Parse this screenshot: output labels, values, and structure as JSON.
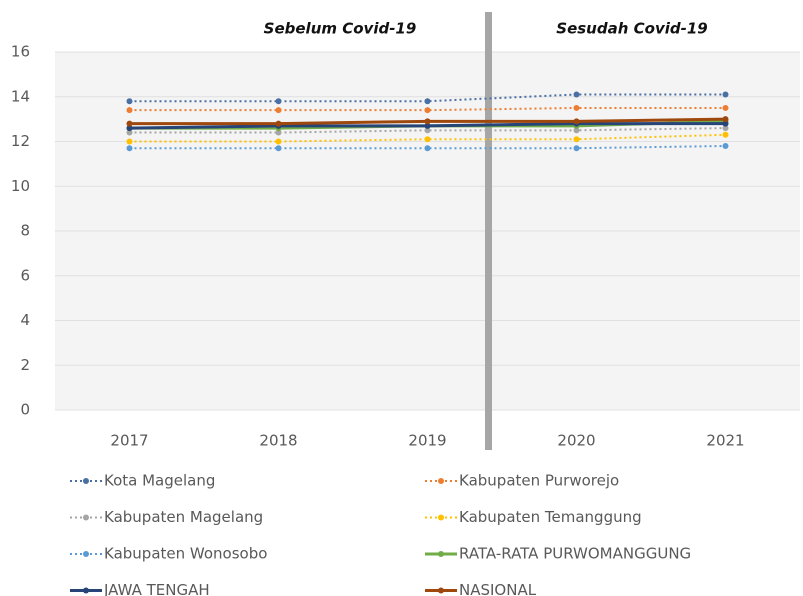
{
  "chart_data": {
    "type": "line",
    "annotations": [
      "Sebelum Covid-19",
      "Sesudah Covid-19"
    ],
    "categories": [
      "2017",
      "2018",
      "2019",
      "2020",
      "2021"
    ],
    "ylim": [
      0,
      16
    ],
    "yticks": [
      0,
      2,
      4,
      6,
      8,
      10,
      12,
      14,
      16
    ],
    "grid": true,
    "series": [
      {
        "name": "Kota Magelang",
        "color": "#4a6fa5",
        "style": "dotted",
        "values": [
          13.8,
          13.8,
          13.8,
          14.1,
          14.1
        ]
      },
      {
        "name": "Kabupaten Purworejo",
        "color": "#ed7d31",
        "style": "dotted",
        "values": [
          13.4,
          13.4,
          13.4,
          13.5,
          13.5
        ]
      },
      {
        "name": "Kabupaten Magelang",
        "color": "#a5a5a5",
        "style": "dotted",
        "values": [
          12.4,
          12.4,
          12.5,
          12.5,
          12.6
        ]
      },
      {
        "name": "Kabupaten Temanggung",
        "color": "#ffc000",
        "style": "dotted",
        "values": [
          12.0,
          12.0,
          12.1,
          12.1,
          12.3
        ]
      },
      {
        "name": "Kabupaten Wonosobo",
        "color": "#5b9bd5",
        "style": "dotted",
        "values": [
          11.7,
          11.7,
          11.7,
          11.7,
          11.8
        ]
      },
      {
        "name": "RATA-RATA PURWOMANGGUNG",
        "color": "#70ad47",
        "style": "solid",
        "values": [
          12.6,
          12.6,
          12.7,
          12.7,
          12.9
        ]
      },
      {
        "name": "JAWA TENGAH",
        "color": "#264478",
        "style": "solid",
        "values": [
          12.6,
          12.7,
          12.7,
          12.8,
          12.8
        ]
      },
      {
        "name": "NASIONAL",
        "color": "#9e480e",
        "style": "solid",
        "values": [
          12.8,
          12.8,
          12.9,
          12.9,
          13.0
        ]
      }
    ]
  }
}
